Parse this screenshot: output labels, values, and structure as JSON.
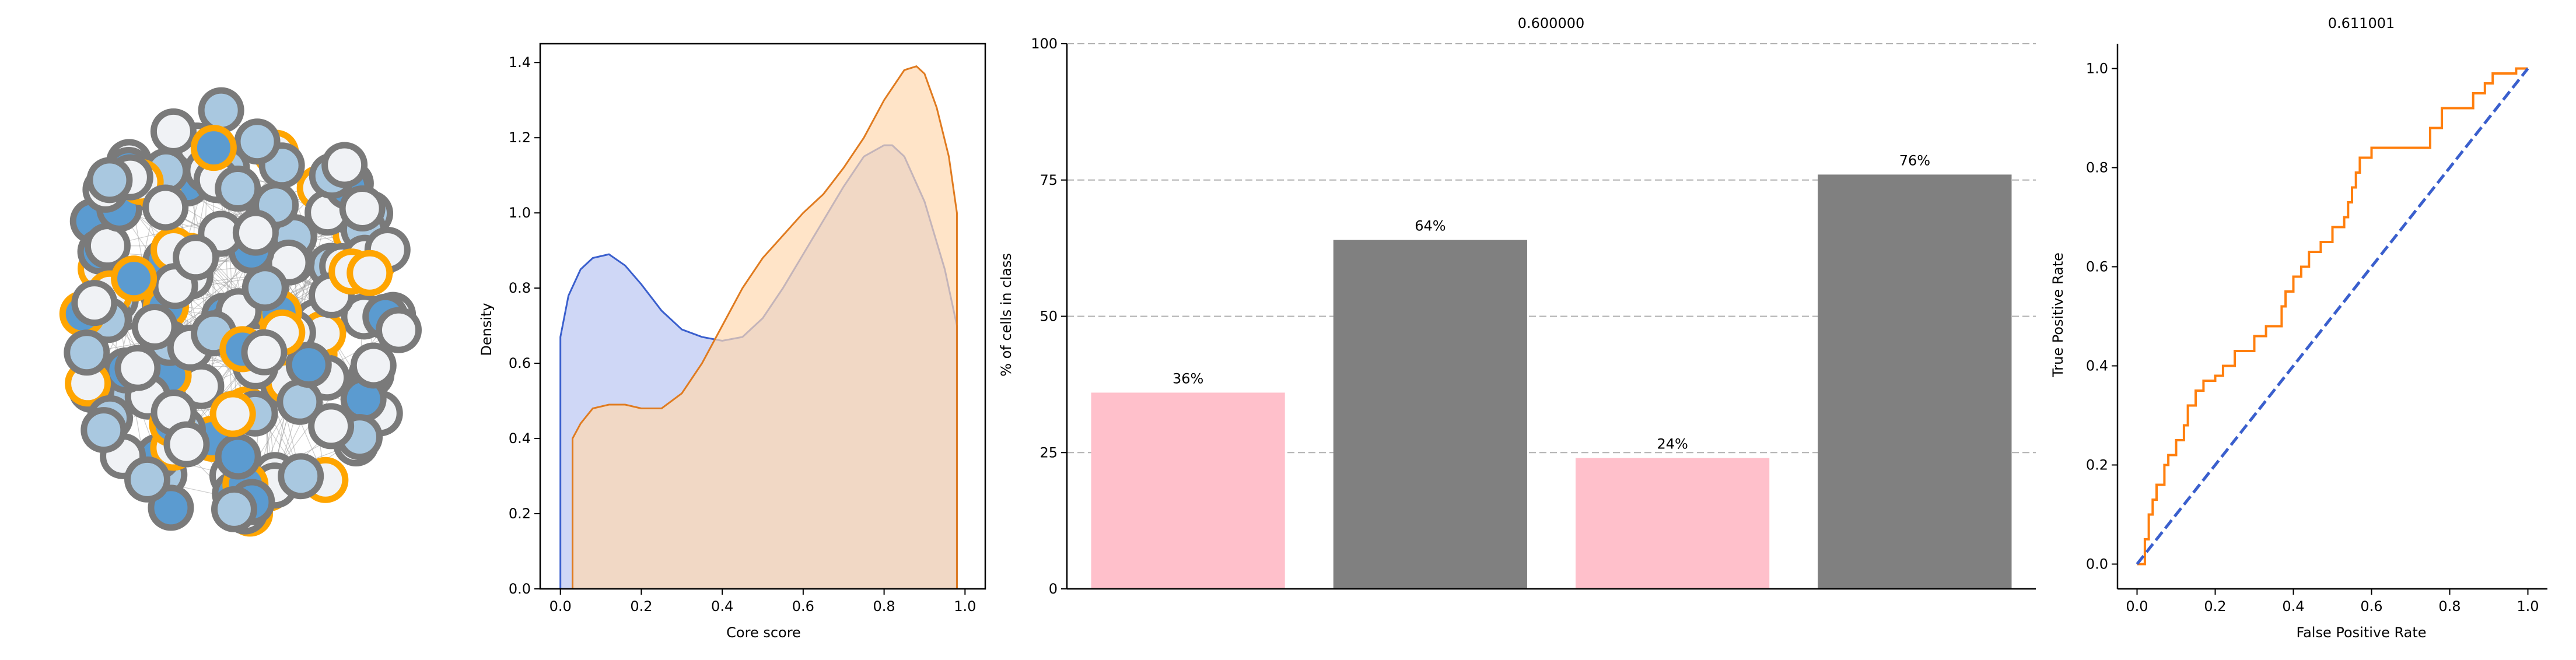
{
  "network": {
    "node_colors": {
      "outer_gray": "#7a7a7a",
      "outer_orange": "#ffa500",
      "fill_light": "#f0f2f5",
      "fill_pale_blue": "#a9c8e0",
      "fill_blue": "#5b9bd0"
    },
    "edge_color": "#9a9a9a"
  },
  "chart_data": [
    {
      "type": "area",
      "xlabel": "Core score",
      "ylabel": "Density",
      "xlim": [
        -0.05,
        1.05
      ],
      "ylim": [
        0,
        1.45
      ],
      "xticks": [
        "0.0",
        "0.2",
        "0.4",
        "0.6",
        "0.8",
        "1.0"
      ],
      "yticks": [
        "0.0",
        "0.2",
        "0.4",
        "0.6",
        "0.8",
        "1.0",
        "1.2",
        "1.4"
      ],
      "series": [
        {
          "color": "#3a5fcd",
          "fill": "#ccd5f5",
          "x": [
            0.0,
            0.02,
            0.05,
            0.08,
            0.12,
            0.16,
            0.2,
            0.25,
            0.3,
            0.35,
            0.4,
            0.45,
            0.5,
            0.55,
            0.6,
            0.65,
            0.7,
            0.75,
            0.8,
            0.82,
            0.85,
            0.9,
            0.95,
            0.98
          ],
          "y": [
            0.67,
            0.78,
            0.85,
            0.88,
            0.89,
            0.86,
            0.81,
            0.74,
            0.69,
            0.67,
            0.66,
            0.67,
            0.72,
            0.8,
            0.89,
            0.98,
            1.07,
            1.15,
            1.18,
            1.18,
            1.15,
            1.03,
            0.85,
            0.7
          ]
        },
        {
          "color": "#e07b20",
          "fill": "#ffd8b0",
          "x": [
            0.03,
            0.05,
            0.08,
            0.12,
            0.16,
            0.2,
            0.25,
            0.3,
            0.35,
            0.4,
            0.45,
            0.5,
            0.55,
            0.6,
            0.65,
            0.7,
            0.75,
            0.8,
            0.85,
            0.88,
            0.9,
            0.93,
            0.96,
            0.98
          ],
          "y": [
            0.4,
            0.44,
            0.48,
            0.49,
            0.49,
            0.48,
            0.48,
            0.52,
            0.6,
            0.7,
            0.8,
            0.88,
            0.94,
            1.0,
            1.05,
            1.12,
            1.2,
            1.3,
            1.38,
            1.39,
            1.37,
            1.28,
            1.15,
            1.0
          ]
        }
      ]
    },
    {
      "type": "bar",
      "title": "0.600000",
      "ylabel": "% of cells in class",
      "ylim": [
        0,
        100
      ],
      "yticks": [
        "0",
        "25",
        "50",
        "75",
        "100"
      ],
      "grid": true,
      "values": [
        36,
        64,
        24,
        76
      ],
      "labels": [
        "36%",
        "64%",
        "24%",
        "76%"
      ],
      "colors": [
        "#ffc0cb",
        "#808080",
        "#ffc0cb",
        "#808080"
      ]
    },
    {
      "type": "line",
      "title": "0.611001",
      "xlabel": "False Positive Rate",
      "ylabel": "True Positive Rate",
      "xlim": [
        -0.05,
        1.05
      ],
      "ylim": [
        -0.05,
        1.05
      ],
      "xticks": [
        "0.0",
        "0.2",
        "0.4",
        "0.6",
        "0.8",
        "1.0"
      ],
      "yticks": [
        "0.0",
        "0.2",
        "0.4",
        "0.6",
        "0.8",
        "1.0"
      ],
      "series": [
        {
          "color": "#ff7f0e",
          "style": "solid",
          "x": [
            0,
            0.02,
            0.02,
            0.03,
            0.03,
            0.04,
            0.04,
            0.05,
            0.05,
            0.07,
            0.07,
            0.08,
            0.08,
            0.1,
            0.1,
            0.12,
            0.12,
            0.13,
            0.13,
            0.15,
            0.15,
            0.17,
            0.17,
            0.2,
            0.2,
            0.22,
            0.22,
            0.25,
            0.25,
            0.3,
            0.3,
            0.33,
            0.33,
            0.37,
            0.37,
            0.38,
            0.38,
            0.4,
            0.4,
            0.42,
            0.42,
            0.44,
            0.44,
            0.47,
            0.47,
            0.5,
            0.5,
            0.53,
            0.53,
            0.54,
            0.54,
            0.55,
            0.55,
            0.56,
            0.56,
            0.57,
            0.57,
            0.6,
            0.6,
            0.63,
            0.63,
            0.75,
            0.75,
            0.78,
            0.78,
            0.8,
            0.8,
            0.86,
            0.86,
            0.89,
            0.89,
            0.91,
            0.91,
            0.94,
            0.94,
            0.97,
            0.97,
            1.0
          ],
          "y": [
            0,
            0,
            0.05,
            0.05,
            0.1,
            0.1,
            0.13,
            0.13,
            0.16,
            0.16,
            0.2,
            0.2,
            0.22,
            0.22,
            0.25,
            0.25,
            0.28,
            0.28,
            0.32,
            0.32,
            0.35,
            0.35,
            0.37,
            0.37,
            0.38,
            0.38,
            0.4,
            0.4,
            0.43,
            0.43,
            0.46,
            0.46,
            0.48,
            0.48,
            0.52,
            0.52,
            0.55,
            0.55,
            0.58,
            0.58,
            0.6,
            0.6,
            0.63,
            0.63,
            0.65,
            0.65,
            0.68,
            0.68,
            0.7,
            0.7,
            0.73,
            0.73,
            0.76,
            0.76,
            0.79,
            0.79,
            0.82,
            0.82,
            0.84,
            0.84,
            0.84,
            0.84,
            0.88,
            0.88,
            0.92,
            0.92,
            0.92,
            0.92,
            0.95,
            0.95,
            0.97,
            0.97,
            0.99,
            0.99,
            0.99,
            0.99,
            1.0,
            1.0
          ]
        },
        {
          "color": "#3a5fcd",
          "style": "dashed",
          "x": [
            0,
            1
          ],
          "y": [
            0,
            1
          ]
        }
      ]
    }
  ]
}
